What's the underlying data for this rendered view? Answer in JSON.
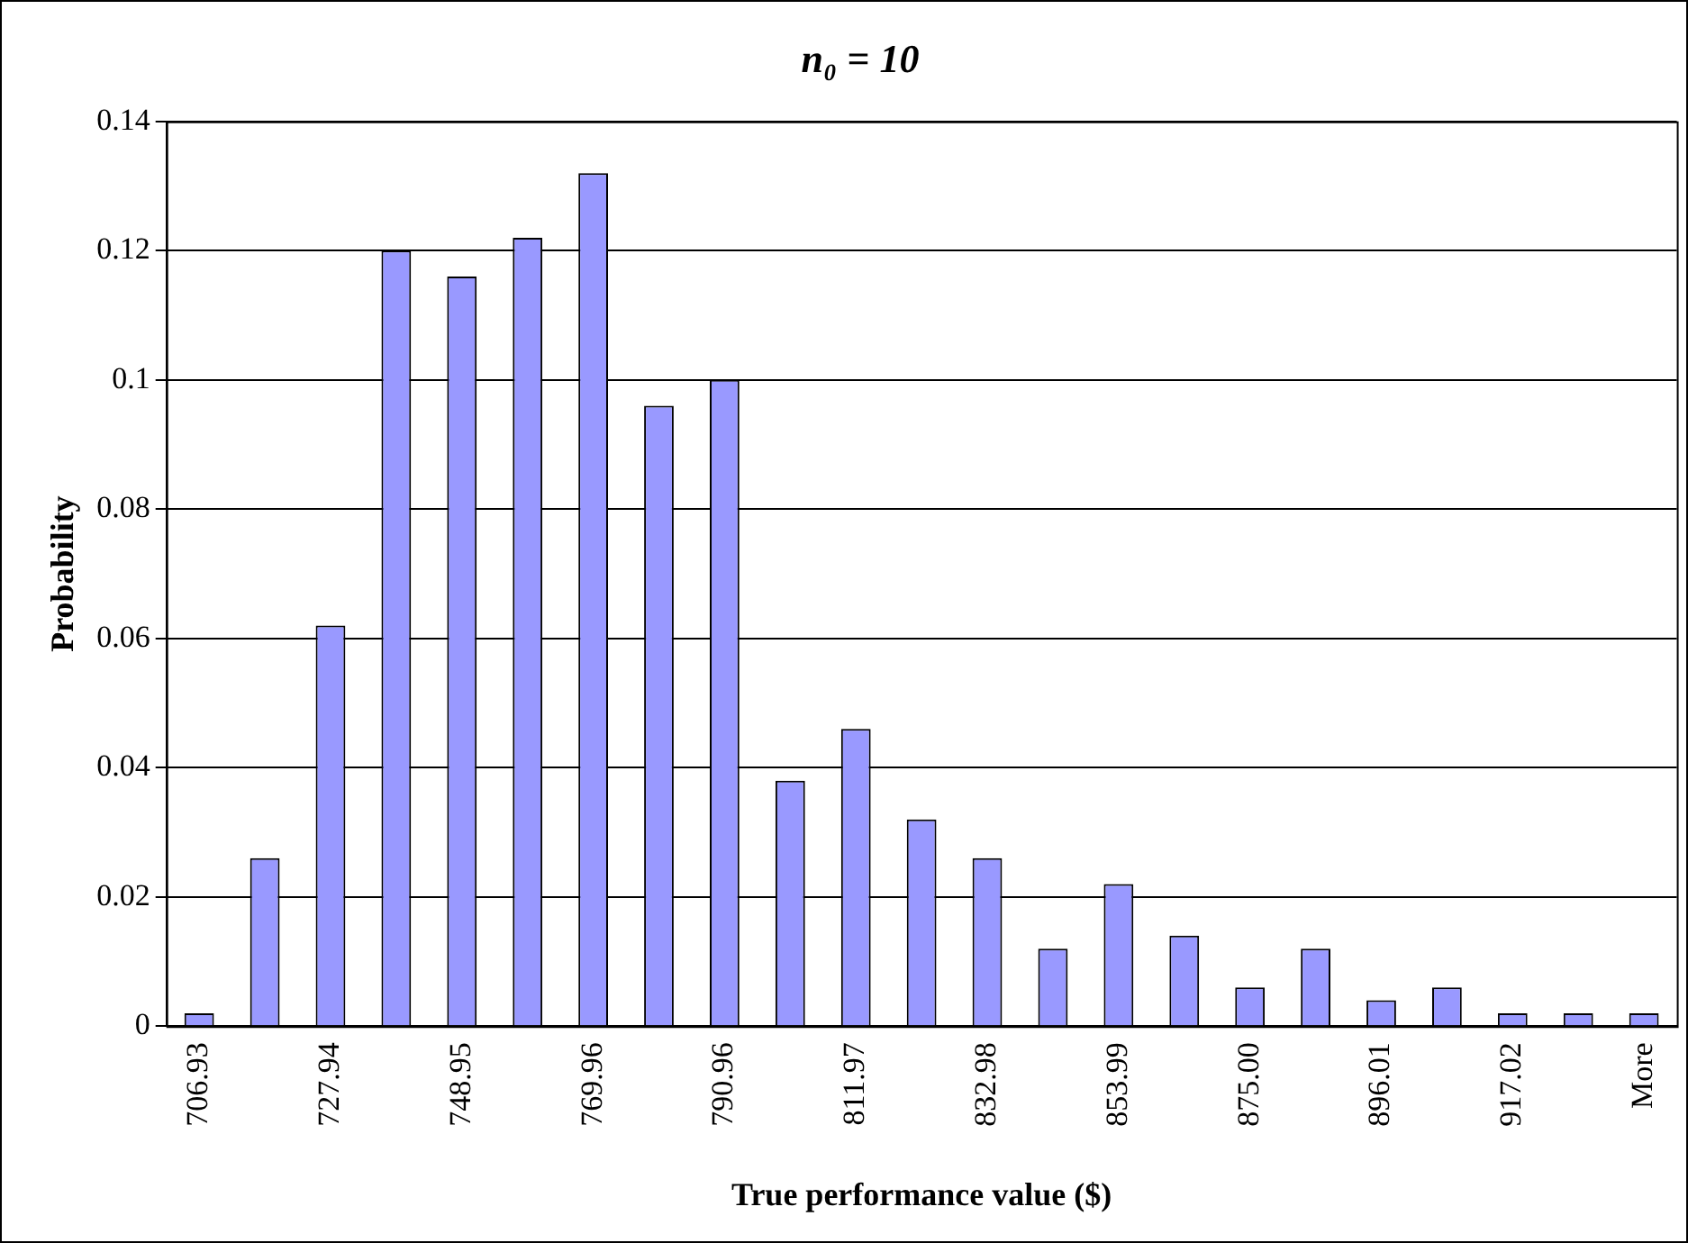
{
  "chart_data": {
    "type": "bar",
    "title": "n₀ = 10",
    "xlabel": "True performance value ($)",
    "ylabel": "Probability",
    "categories": [
      "706.93",
      null,
      "727.94",
      null,
      "748.95",
      null,
      "769.96",
      null,
      "790.96",
      null,
      "811.97",
      null,
      "832.98",
      null,
      "853.99",
      null,
      "875.00",
      null,
      "896.01",
      null,
      "917.02",
      null,
      "More"
    ],
    "values": [
      0.002,
      0.026,
      0.062,
      0.12,
      0.116,
      0.122,
      0.132,
      0.096,
      0.1,
      0.038,
      0.046,
      0.032,
      0.026,
      0.012,
      0.022,
      0.014,
      0.006,
      0.012,
      0.004,
      0.006,
      0.002,
      0.002,
      0.002
    ],
    "color": "#9999ff",
    "ylim": [
      0,
      0.14
    ],
    "yticks": [
      0,
      0.02,
      0.04,
      0.06,
      0.08,
      0.1,
      0.12,
      0.14
    ],
    "grid": "y",
    "legend": false
  }
}
